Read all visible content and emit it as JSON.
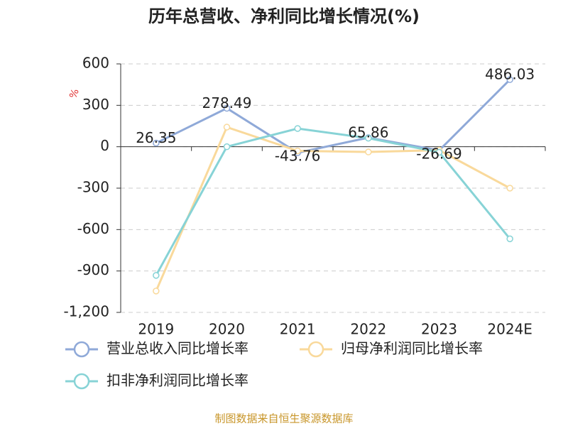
{
  "chart_data": {
    "type": "line",
    "title": "历年总营收、净利同比增长情况(%)",
    "y_unit": "%",
    "categories": [
      "2019",
      "2020",
      "2021",
      "2022",
      "2023",
      "2024E"
    ],
    "series": [
      {
        "name": "营业总收入同比增长率",
        "color": "#8fa9d8",
        "values": [
          26.35,
          278.49,
          -43.76,
          65.86,
          -26.69,
          486.03
        ],
        "show_labels": true
      },
      {
        "name": "归母净利润同比增长率",
        "color": "#f9d99b",
        "values": [
          -1045,
          142,
          -30,
          -38,
          -25,
          -300
        ],
        "show_labels": false
      },
      {
        "name": "扣非净利润同比增长率",
        "color": "#87d3d6",
        "values": [
          -932,
          0,
          132,
          62,
          -40,
          -667
        ],
        "show_labels": false
      }
    ],
    "ylim": [
      -1200,
      600
    ],
    "yticks": [
      600,
      300,
      0,
      -300,
      -600,
      -900,
      {
        "value": -1200,
        "label": "-1,200"
      }
    ],
    "grid": true,
    "source": "制图数据来自恒生聚源数据库"
  }
}
